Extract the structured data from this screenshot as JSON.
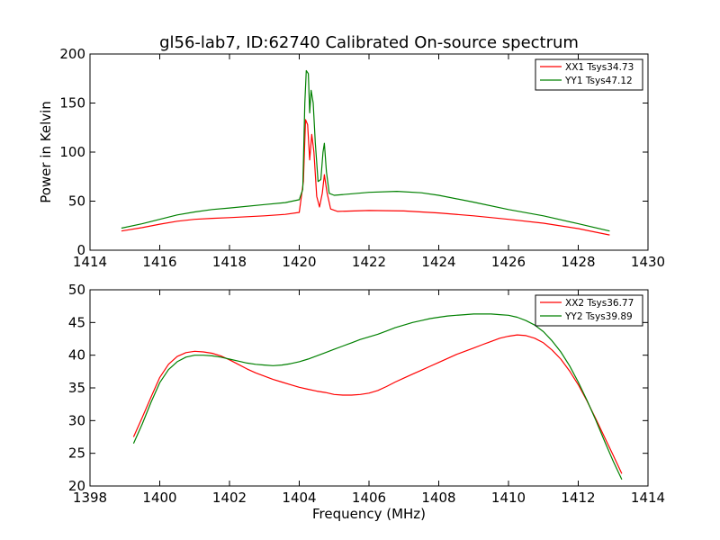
{
  "chart_data": [
    {
      "type": "line",
      "title": "gl56-lab7, ID:62740 Calibrated On-source spectrum",
      "xlabel": "",
      "ylabel": "Power in Kelvin",
      "xlim": [
        1414,
        1430
      ],
      "ylim": [
        0,
        200
      ],
      "xticks": [
        1414,
        1416,
        1418,
        1420,
        1422,
        1424,
        1426,
        1428,
        1430
      ],
      "yticks": [
        0,
        50,
        100,
        150,
        200
      ],
      "legend_position": "top-right",
      "series": [
        {
          "name": "XX1 Tsys34.73",
          "color": "#ff0000",
          "points": [
            [
              1414.9,
              19.5
            ],
            [
              1415.5,
              23
            ],
            [
              1416,
              26.5
            ],
            [
              1416.5,
              29.5
            ],
            [
              1417,
              31.5
            ],
            [
              1417.5,
              32.5
            ],
            [
              1418,
              33.2
            ],
            [
              1419,
              35
            ],
            [
              1419.6,
              36.5
            ],
            [
              1420.0,
              38.5
            ],
            [
              1420.12,
              70
            ],
            [
              1420.18,
              133
            ],
            [
              1420.24,
              128
            ],
            [
              1420.3,
              92
            ],
            [
              1420.36,
              118
            ],
            [
              1420.42,
              100
            ],
            [
              1420.5,
              55
            ],
            [
              1420.58,
              44
            ],
            [
              1420.66,
              58
            ],
            [
              1420.72,
              77
            ],
            [
              1420.8,
              58
            ],
            [
              1420.9,
              42
            ],
            [
              1421.1,
              39.5
            ],
            [
              1422,
              40.5
            ],
            [
              1423,
              40
            ],
            [
              1424,
              38
            ],
            [
              1425,
              35
            ],
            [
              1426,
              31.5
            ],
            [
              1427,
              27.5
            ],
            [
              1428,
              22
            ],
            [
              1428.9,
              15.5
            ]
          ]
        },
        {
          "name": "YY1 Tsys47.12",
          "color": "#008000",
          "points": [
            [
              1414.9,
              22.5
            ],
            [
              1415.5,
              27
            ],
            [
              1416,
              31.5
            ],
            [
              1416.5,
              36
            ],
            [
              1417,
              39
            ],
            [
              1417.5,
              41.5
            ],
            [
              1418,
              43
            ],
            [
              1419,
              46.5
            ],
            [
              1419.6,
              48.5
            ],
            [
              1420.0,
              51.5
            ],
            [
              1420.1,
              62
            ],
            [
              1420.16,
              150
            ],
            [
              1420.2,
              183
            ],
            [
              1420.26,
              180
            ],
            [
              1420.3,
              140
            ],
            [
              1420.34,
              163
            ],
            [
              1420.4,
              150
            ],
            [
              1420.46,
              110
            ],
            [
              1420.54,
              70
            ],
            [
              1420.62,
              72
            ],
            [
              1420.68,
              100
            ],
            [
              1420.72,
              109
            ],
            [
              1420.78,
              80
            ],
            [
              1420.86,
              58
            ],
            [
              1421,
              56
            ],
            [
              1422,
              59
            ],
            [
              1422.8,
              60
            ],
            [
              1423.5,
              58.5
            ],
            [
              1424,
              56
            ],
            [
              1425,
              49
            ],
            [
              1426,
              41.5
            ],
            [
              1427,
              35
            ],
            [
              1428,
              27
            ],
            [
              1428.9,
              19.5
            ]
          ]
        }
      ]
    },
    {
      "type": "line",
      "title": "",
      "xlabel": "Frequency (MHz)",
      "ylabel": "",
      "xlim": [
        1398,
        1414
      ],
      "ylim": [
        20,
        50
      ],
      "xticks": [
        1398,
        1400,
        1402,
        1404,
        1406,
        1408,
        1410,
        1412,
        1414
      ],
      "yticks": [
        20,
        25,
        30,
        35,
        40,
        45,
        50
      ],
      "legend_position": "top-right",
      "series": [
        {
          "name": "XX2 Tsys36.77",
          "color": "#ff0000",
          "points": [
            [
              1399.25,
              27.5
            ],
            [
              1399.5,
              30.5
            ],
            [
              1399.75,
              33.6
            ],
            [
              1400,
              36.6
            ],
            [
              1400.25,
              38.6
            ],
            [
              1400.5,
              39.8
            ],
            [
              1400.75,
              40.4
            ],
            [
              1401,
              40.6
            ],
            [
              1401.25,
              40.5
            ],
            [
              1401.5,
              40.3
            ],
            [
              1401.75,
              39.9
            ],
            [
              1402,
              39.3
            ],
            [
              1402.25,
              38.6
            ],
            [
              1402.5,
              37.9
            ],
            [
              1402.75,
              37.3
            ],
            [
              1403,
              36.8
            ],
            [
              1403.25,
              36.3
            ],
            [
              1403.5,
              35.9
            ],
            [
              1403.75,
              35.5
            ],
            [
              1404,
              35.1
            ],
            [
              1404.25,
              34.8
            ],
            [
              1404.5,
              34.5
            ],
            [
              1404.75,
              34.3
            ],
            [
              1405,
              34.0
            ],
            [
              1405.25,
              33.9
            ],
            [
              1405.5,
              33.9
            ],
            [
              1405.75,
              34.0
            ],
            [
              1406,
              34.2
            ],
            [
              1406.25,
              34.6
            ],
            [
              1406.5,
              35.2
            ],
            [
              1406.75,
              35.9
            ],
            [
              1407,
              36.5
            ],
            [
              1407.25,
              37.1
            ],
            [
              1407.5,
              37.7
            ],
            [
              1407.75,
              38.3
            ],
            [
              1408,
              38.9
            ],
            [
              1408.25,
              39.5
            ],
            [
              1408.5,
              40.1
            ],
            [
              1408.75,
              40.6
            ],
            [
              1409,
              41.1
            ],
            [
              1409.25,
              41.6
            ],
            [
              1409.5,
              42.1
            ],
            [
              1409.75,
              42.6
            ],
            [
              1410,
              42.9
            ],
            [
              1410.25,
              43.1
            ],
            [
              1410.5,
              43.0
            ],
            [
              1410.75,
              42.6
            ],
            [
              1411,
              41.9
            ],
            [
              1411.25,
              40.8
            ],
            [
              1411.5,
              39.4
            ],
            [
              1411.75,
              37.6
            ],
            [
              1412,
              35.5
            ],
            [
              1412.25,
              33.0
            ],
            [
              1412.5,
              30.3
            ],
            [
              1412.75,
              27.5
            ],
            [
              1413,
              24.7
            ],
            [
              1413.25,
              21.9
            ]
          ]
        },
        {
          "name": "YY2 Tsys39.89",
          "color": "#008000",
          "points": [
            [
              1399.25,
              26.5
            ],
            [
              1399.5,
              29.5
            ],
            [
              1399.75,
              32.8
            ],
            [
              1400,
              35.8
            ],
            [
              1400.25,
              37.8
            ],
            [
              1400.5,
              39.0
            ],
            [
              1400.75,
              39.7
            ],
            [
              1401,
              40.0
            ],
            [
              1401.25,
              40.0
            ],
            [
              1401.5,
              39.9
            ],
            [
              1401.75,
              39.7
            ],
            [
              1402,
              39.4
            ],
            [
              1402.25,
              39.1
            ],
            [
              1402.5,
              38.8
            ],
            [
              1402.75,
              38.6
            ],
            [
              1403,
              38.5
            ],
            [
              1403.25,
              38.4
            ],
            [
              1403.5,
              38.5
            ],
            [
              1403.75,
              38.7
            ],
            [
              1404,
              39.0
            ],
            [
              1404.25,
              39.4
            ],
            [
              1404.5,
              39.9
            ],
            [
              1404.75,
              40.4
            ],
            [
              1405,
              40.9
            ],
            [
              1405.25,
              41.4
            ],
            [
              1405.5,
              41.9
            ],
            [
              1405.75,
              42.4
            ],
            [
              1406,
              42.8
            ],
            [
              1406.25,
              43.2
            ],
            [
              1406.5,
              43.7
            ],
            [
              1406.75,
              44.2
            ],
            [
              1407,
              44.6
            ],
            [
              1407.25,
              45.0
            ],
            [
              1407.5,
              45.3
            ],
            [
              1407.75,
              45.6
            ],
            [
              1408,
              45.8
            ],
            [
              1408.25,
              46.0
            ],
            [
              1408.5,
              46.1
            ],
            [
              1408.75,
              46.2
            ],
            [
              1409,
              46.3
            ],
            [
              1409.25,
              46.3
            ],
            [
              1409.5,
              46.3
            ],
            [
              1409.75,
              46.2
            ],
            [
              1410,
              46.1
            ],
            [
              1410.25,
              45.8
            ],
            [
              1410.5,
              45.3
            ],
            [
              1410.75,
              44.6
            ],
            [
              1411,
              43.6
            ],
            [
              1411.25,
              42.2
            ],
            [
              1411.5,
              40.5
            ],
            [
              1411.75,
              38.4
            ],
            [
              1412,
              35.9
            ],
            [
              1412.25,
              33.1
            ],
            [
              1412.5,
              30.1
            ],
            [
              1412.75,
              26.9
            ],
            [
              1413,
              23.8
            ],
            [
              1413.25,
              21.0
            ]
          ]
        }
      ]
    }
  ]
}
